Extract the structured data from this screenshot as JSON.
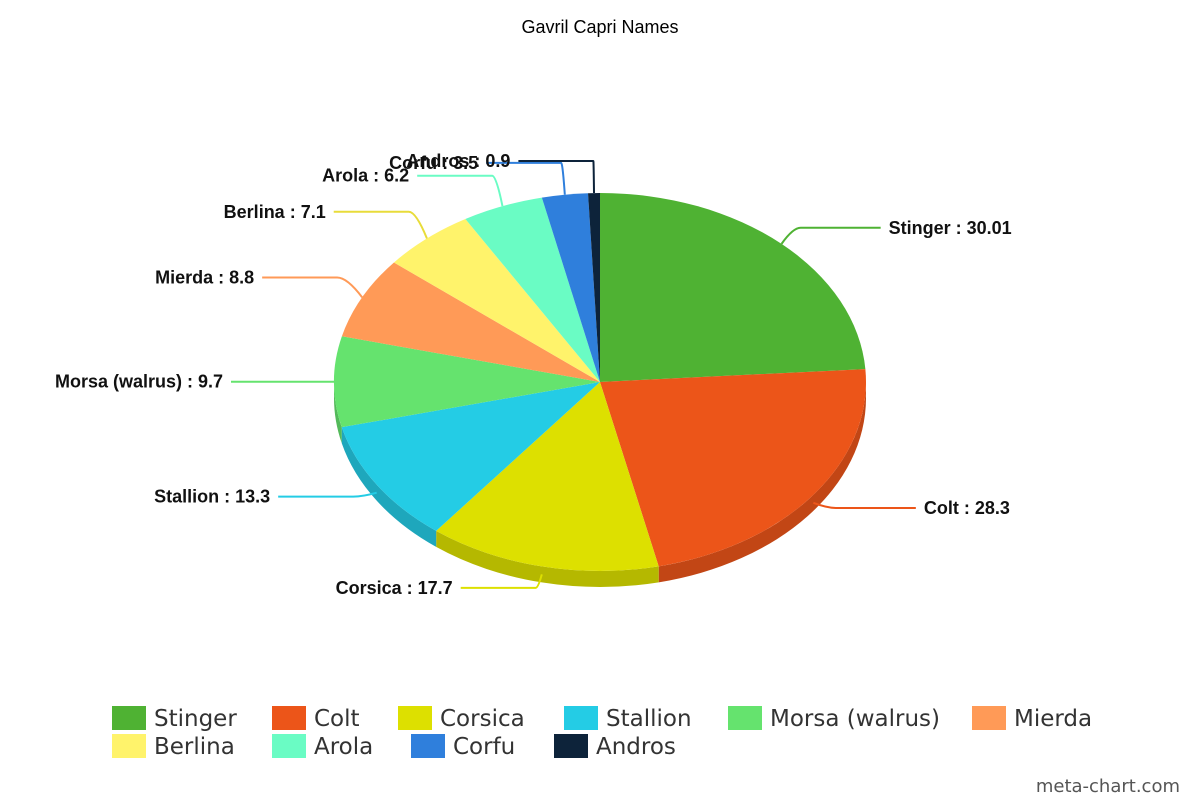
{
  "chart_data": {
    "type": "pie",
    "title": "Gavril Capri Names",
    "categories": [
      "Stinger",
      "Colt",
      "Corsica",
      "Stallion",
      "Morsa (walrus)",
      "Mierda",
      "Berlina",
      "Arola",
      "Corfu",
      "Andros"
    ],
    "values": [
      30.01,
      28.3,
      17.7,
      13.3,
      9.7,
      8.8,
      7.1,
      6.2,
      3.5,
      0.9
    ],
    "value_labels": [
      "Stinger : 30.01",
      "Colt : 28.3",
      "Corsica : 17.7",
      "Stallion : 13.3",
      "Morsa (walrus) : 9.7",
      "Mierda : 8.8",
      "Berlina : 7.1",
      "Arola : 6.2",
      "Corfu : 3.5",
      "Andros : 0.9"
    ],
    "colors": [
      "#4fb233",
      "#ec5519",
      "#dde000",
      "#24cce5",
      "#65e36e",
      "#ff9a57",
      "#fff36b",
      "#6afcc4",
      "#2f7fdc",
      "#0d233a"
    ],
    "legend_position": "bottom",
    "style": "3d"
  },
  "credit": "meta-chart.com"
}
